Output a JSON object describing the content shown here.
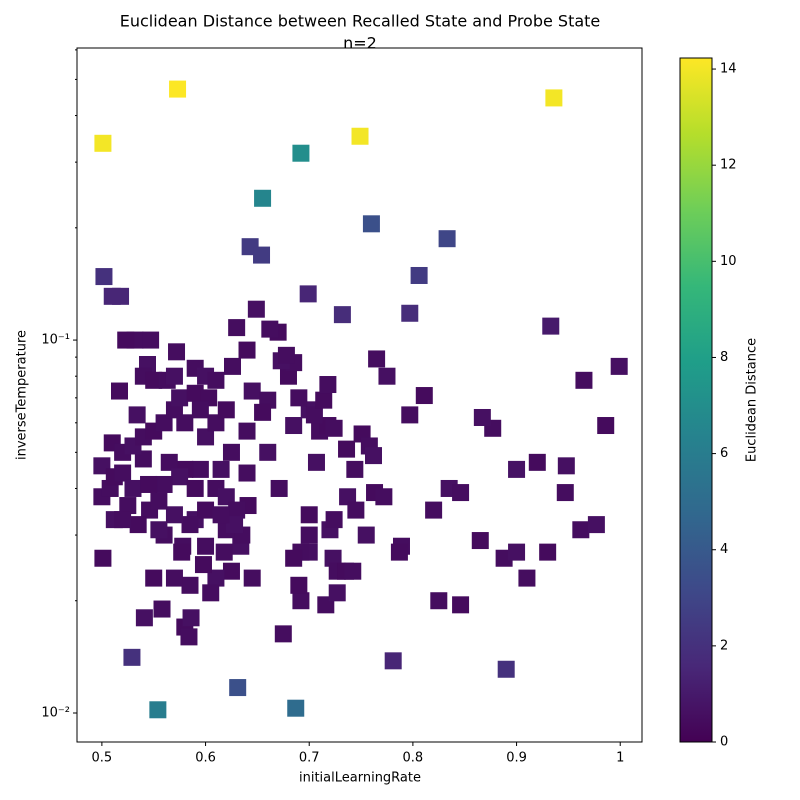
{
  "chart_data": {
    "type": "scatter",
    "title": "Euclidean Distance between Recalled State and Probe State",
    "subtitle": "n=2",
    "x_label": "initialLearningRate",
    "y_label": "inverseTemperature",
    "colorbar_label": "Euclidean Distance",
    "colormap": "viridis",
    "marker": "square",
    "xlim": [
      0.476,
      1.021
    ],
    "xticks": [
      0.5,
      0.6,
      0.7,
      0.8,
      0.9,
      1.0
    ],
    "ylog": true,
    "ylim": [
      0.00836,
      0.607
    ],
    "yticks": [
      {
        "value": 0.01,
        "label": "10⁻²"
      },
      {
        "value": 0.1,
        "label": "10⁻¹"
      }
    ],
    "yminorticks": [
      0.02,
      0.03,
      0.04,
      0.05,
      0.06,
      0.07,
      0.08,
      0.09,
      0.2,
      0.3,
      0.4,
      0.5,
      0.6
    ],
    "clim": [
      0,
      14.23
    ],
    "cticks": [
      0,
      2,
      4,
      6,
      8,
      10,
      12,
      14
    ],
    "points": [
      [
        0.573,
        0.471,
        14.2
      ],
      [
        0.936,
        0.446,
        14.0
      ],
      [
        0.501,
        0.337,
        14.0
      ],
      [
        0.749,
        0.352,
        14.0
      ],
      [
        0.692,
        0.317,
        7.0
      ],
      [
        0.655,
        0.24,
        6.5
      ],
      [
        0.76,
        0.205,
        3.5
      ],
      [
        0.833,
        0.187,
        3.0
      ],
      [
        0.643,
        0.178,
        2.5
      ],
      [
        0.654,
        0.169,
        2.5
      ],
      [
        0.502,
        0.148,
        2.0
      ],
      [
        0.806,
        0.149,
        2.5
      ],
      [
        0.51,
        0.131,
        1.5
      ],
      [
        0.518,
        0.131,
        1.5
      ],
      [
        0.699,
        0.133,
        1.5
      ],
      [
        0.732,
        0.117,
        1.8
      ],
      [
        0.797,
        0.118,
        1.8
      ],
      [
        0.933,
        0.109,
        1.0
      ],
      [
        0.529,
        0.0141,
        2.0
      ],
      [
        0.781,
        0.0138,
        1.5
      ],
      [
        0.89,
        0.0131,
        2.0
      ],
      [
        0.631,
        0.0117,
        3.5
      ],
      [
        0.554,
        0.0102,
        6.0
      ],
      [
        0.687,
        0.0103,
        5.0
      ],
      [
        0.999,
        0.085,
        0.6
      ],
      [
        0.965,
        0.078,
        0.5
      ],
      [
        0.986,
        0.059,
        0.4
      ],
      [
        0.948,
        0.046,
        0.6
      ],
      [
        0.947,
        0.039,
        0.5
      ],
      [
        0.92,
        0.047,
        0.4
      ],
      [
        0.9,
        0.045,
        0.7
      ],
      [
        0.877,
        0.058,
        0.5
      ],
      [
        0.867,
        0.062,
        0.6
      ],
      [
        0.811,
        0.071,
        0.4
      ],
      [
        0.797,
        0.063,
        0.5
      ],
      [
        0.775,
        0.08,
        0.6
      ],
      [
        0.765,
        0.089,
        0.5
      ],
      [
        0.751,
        0.056,
        0.4
      ],
      [
        0.758,
        0.052,
        0.5
      ],
      [
        0.762,
        0.049,
        0.6
      ],
      [
        0.744,
        0.045,
        0.5
      ],
      [
        0.736,
        0.051,
        0.4
      ],
      [
        0.737,
        0.038,
        0.6
      ],
      [
        0.745,
        0.035,
        0.5
      ],
      [
        0.763,
        0.039,
        0.4
      ],
      [
        0.772,
        0.038,
        0.5
      ],
      [
        0.755,
        0.03,
        0.6
      ],
      [
        0.789,
        0.028,
        0.5
      ],
      [
        0.787,
        0.027,
        0.4
      ],
      [
        0.82,
        0.035,
        0.5
      ],
      [
        0.835,
        0.04,
        0.6
      ],
      [
        0.846,
        0.039,
        0.5
      ],
      [
        0.865,
        0.029,
        0.4
      ],
      [
        0.888,
        0.026,
        0.5
      ],
      [
        0.9,
        0.027,
        0.6
      ],
      [
        0.91,
        0.023,
        0.5
      ],
      [
        0.93,
        0.027,
        0.4
      ],
      [
        0.962,
        0.031,
        0.5
      ],
      [
        0.977,
        0.032,
        0.6
      ],
      [
        0.825,
        0.02,
        0.5
      ],
      [
        0.846,
        0.0195,
        0.4
      ],
      [
        0.716,
        0.0195,
        0.5
      ],
      [
        0.727,
        0.021,
        0.6
      ],
      [
        0.692,
        0.02,
        0.5
      ],
      [
        0.69,
        0.022,
        0.4
      ],
      [
        0.675,
        0.0163,
        0.5
      ],
      [
        0.723,
        0.026,
        0.6
      ],
      [
        0.727,
        0.024,
        0.5
      ],
      [
        0.735,
        0.024,
        0.4
      ],
      [
        0.742,
        0.024,
        0.5
      ],
      [
        0.72,
        0.031,
        0.6
      ],
      [
        0.724,
        0.033,
        0.5
      ],
      [
        0.7,
        0.034,
        0.4
      ],
      [
        0.7,
        0.03,
        0.5
      ],
      [
        0.7,
        0.027,
        0.6
      ],
      [
        0.692,
        0.027,
        0.5
      ],
      [
        0.685,
        0.026,
        0.4
      ],
      [
        0.671,
        0.04,
        0.5
      ],
      [
        0.707,
        0.047,
        0.6
      ],
      [
        0.71,
        0.057,
        0.5
      ],
      [
        0.718,
        0.059,
        0.4
      ],
      [
        0.724,
        0.058,
        0.5
      ],
      [
        0.7,
        0.065,
        0.6
      ],
      [
        0.705,
        0.063,
        0.5
      ],
      [
        0.714,
        0.069,
        0.4
      ],
      [
        0.718,
        0.076,
        0.5
      ],
      [
        0.685,
        0.059,
        0.6
      ],
      [
        0.69,
        0.07,
        0.5
      ],
      [
        0.68,
        0.08,
        0.4
      ],
      [
        0.685,
        0.087,
        0.5
      ],
      [
        0.673,
        0.088,
        0.6
      ],
      [
        0.678,
        0.091,
        0.5
      ],
      [
        0.67,
        0.105,
        0.4
      ],
      [
        0.662,
        0.107,
        0.5
      ],
      [
        0.649,
        0.121,
        0.6
      ],
      [
        0.63,
        0.108,
        0.5
      ],
      [
        0.64,
        0.094,
        0.4
      ],
      [
        0.626,
        0.085,
        0.5
      ],
      [
        0.645,
        0.073,
        0.6
      ],
      [
        0.66,
        0.069,
        0.5
      ],
      [
        0.655,
        0.064,
        0.4
      ],
      [
        0.64,
        0.057,
        0.5
      ],
      [
        0.66,
        0.05,
        0.6
      ],
      [
        0.64,
        0.044,
        0.5
      ],
      [
        0.641,
        0.036,
        0.4
      ],
      [
        0.645,
        0.023,
        0.5
      ],
      [
        0.634,
        0.028,
        0.6
      ],
      [
        0.635,
        0.03,
        0.5
      ],
      [
        0.625,
        0.024,
        0.4
      ],
      [
        0.618,
        0.027,
        0.5
      ],
      [
        0.61,
        0.023,
        0.6
      ],
      [
        0.605,
        0.021,
        0.5
      ],
      [
        0.598,
        0.025,
        0.4
      ],
      [
        0.6,
        0.028,
        0.5
      ],
      [
        0.59,
        0.033,
        0.6
      ],
      [
        0.585,
        0.022,
        0.5
      ],
      [
        0.58,
        0.017,
        0.4
      ],
      [
        0.584,
        0.016,
        0.5
      ],
      [
        0.586,
        0.018,
        0.6
      ],
      [
        0.57,
        0.023,
        0.5
      ],
      [
        0.55,
        0.023,
        0.4
      ],
      [
        0.558,
        0.019,
        0.5
      ],
      [
        0.541,
        0.018,
        0.6
      ],
      [
        0.578,
        0.028,
        0.5
      ],
      [
        0.577,
        0.027,
        0.4
      ],
      [
        0.56,
        0.03,
        0.5
      ],
      [
        0.555,
        0.031,
        0.6
      ],
      [
        0.546,
        0.035,
        0.5
      ],
      [
        0.535,
        0.032,
        0.4
      ],
      [
        0.525,
        0.036,
        0.5
      ],
      [
        0.512,
        0.033,
        0.6
      ],
      [
        0.52,
        0.033,
        0.5
      ],
      [
        0.501,
        0.026,
        0.4
      ],
      [
        0.5,
        0.038,
        0.5
      ],
      [
        0.5,
        0.046,
        0.6
      ],
      [
        0.508,
        0.04,
        0.5
      ],
      [
        0.512,
        0.043,
        0.4
      ],
      [
        0.52,
        0.044,
        0.5
      ],
      [
        0.53,
        0.04,
        0.6
      ],
      [
        0.54,
        0.048,
        0.5
      ],
      [
        0.51,
        0.053,
        0.4
      ],
      [
        0.52,
        0.05,
        0.5
      ],
      [
        0.53,
        0.052,
        0.6
      ],
      [
        0.54,
        0.055,
        0.5
      ],
      [
        0.55,
        0.057,
        0.4
      ],
      [
        0.56,
        0.06,
        0.5
      ],
      [
        0.534,
        0.063,
        0.6
      ],
      [
        0.532,
        0.1,
        0.5
      ],
      [
        0.523,
        0.1,
        0.4
      ],
      [
        0.547,
        0.1,
        0.5
      ],
      [
        0.544,
        0.086,
        0.6
      ],
      [
        0.54,
        0.08,
        0.5
      ],
      [
        0.55,
        0.078,
        0.4
      ],
      [
        0.563,
        0.078,
        0.5
      ],
      [
        0.57,
        0.08,
        0.6
      ],
      [
        0.572,
        0.093,
        0.5
      ],
      [
        0.517,
        0.073,
        0.4
      ],
      [
        0.57,
        0.065,
        0.5
      ],
      [
        0.575,
        0.07,
        0.6
      ],
      [
        0.58,
        0.06,
        0.5
      ],
      [
        0.59,
        0.072,
        0.4
      ],
      [
        0.59,
        0.084,
        0.5
      ],
      [
        0.6,
        0.08,
        0.6
      ],
      [
        0.61,
        0.078,
        0.5
      ],
      [
        0.603,
        0.07,
        0.4
      ],
      [
        0.595,
        0.065,
        0.5
      ],
      [
        0.6,
        0.055,
        0.6
      ],
      [
        0.61,
        0.06,
        0.5
      ],
      [
        0.62,
        0.065,
        0.4
      ],
      [
        0.625,
        0.05,
        0.5
      ],
      [
        0.615,
        0.045,
        0.6
      ],
      [
        0.595,
        0.045,
        0.5
      ],
      [
        0.58,
        0.045,
        0.4
      ],
      [
        0.565,
        0.047,
        0.5
      ],
      [
        0.575,
        0.043,
        0.6
      ],
      [
        0.56,
        0.041,
        0.5
      ],
      [
        0.59,
        0.04,
        0.4
      ],
      [
        0.61,
        0.04,
        0.5
      ],
      [
        0.62,
        0.038,
        0.6
      ],
      [
        0.63,
        0.035,
        0.5
      ],
      [
        0.6,
        0.035,
        0.4
      ],
      [
        0.585,
        0.032,
        0.5
      ],
      [
        0.57,
        0.034,
        0.6
      ],
      [
        0.555,
        0.037,
        0.5
      ],
      [
        0.545,
        0.041,
        0.4
      ],
      [
        0.62,
        0.031,
        0.5
      ],
      [
        0.628,
        0.032,
        0.6
      ],
      [
        0.615,
        0.034,
        0.5
      ]
    ]
  }
}
